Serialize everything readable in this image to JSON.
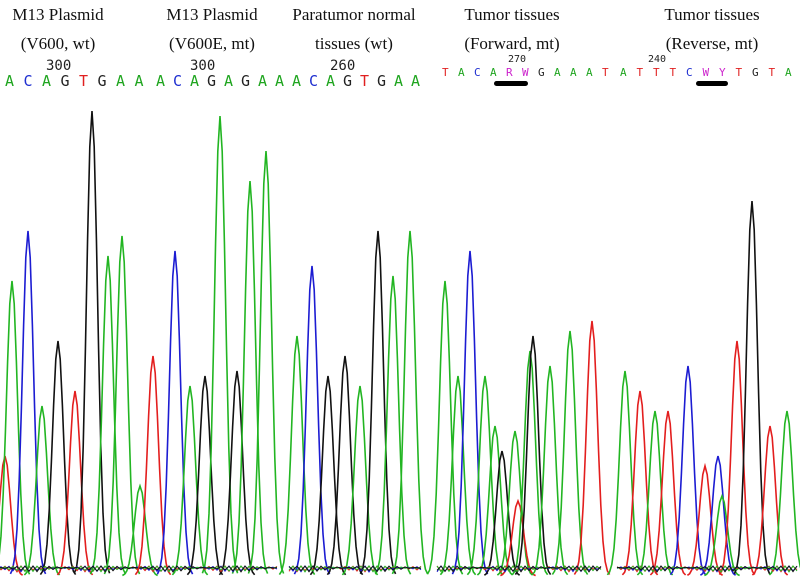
{
  "base_colors": {
    "A": "#1fa51f",
    "C": "#1f2fd0",
    "G": "#222222",
    "T": "#e02020",
    "R": "#cc22cc",
    "W": "#cc22cc",
    "Y": "#cc22cc"
  },
  "panels": [
    {
      "title_lines": [
        "M13 Plasmid",
        "(V600, wt)"
      ],
      "position": "300",
      "bases": [
        "A",
        "C",
        "A",
        "G",
        "T",
        "G",
        "A",
        "A"
      ]
    },
    {
      "title_lines": [
        "M13 Plasmid",
        "(V600E, mt)"
      ],
      "position": "300",
      "bases": [
        "A",
        "C",
        "A",
        "G",
        "A",
        "G",
        "A",
        "A"
      ]
    },
    {
      "title_lines": [
        "Paratumor normal",
        "tissues (wt)"
      ],
      "position": "260",
      "bases": [
        "A",
        "C",
        "A",
        "G",
        "T",
        "G",
        "A",
        "A"
      ]
    },
    {
      "title_lines": [
        "Tumor tissues",
        "(Forward, mt)"
      ],
      "position": "270",
      "bases": [
        "T",
        "A",
        "C",
        "A",
        "R",
        "W",
        "G",
        "A",
        "A",
        "A",
        "T"
      ]
    },
    {
      "title_lines": [
        "Tumor tissues",
        "(Reverse, mt)"
      ],
      "position": "240",
      "bases": [
        "A",
        "T",
        "T",
        "T",
        "C",
        "W",
        "Y",
        "T",
        "G",
        "T",
        "A"
      ]
    }
  ]
}
